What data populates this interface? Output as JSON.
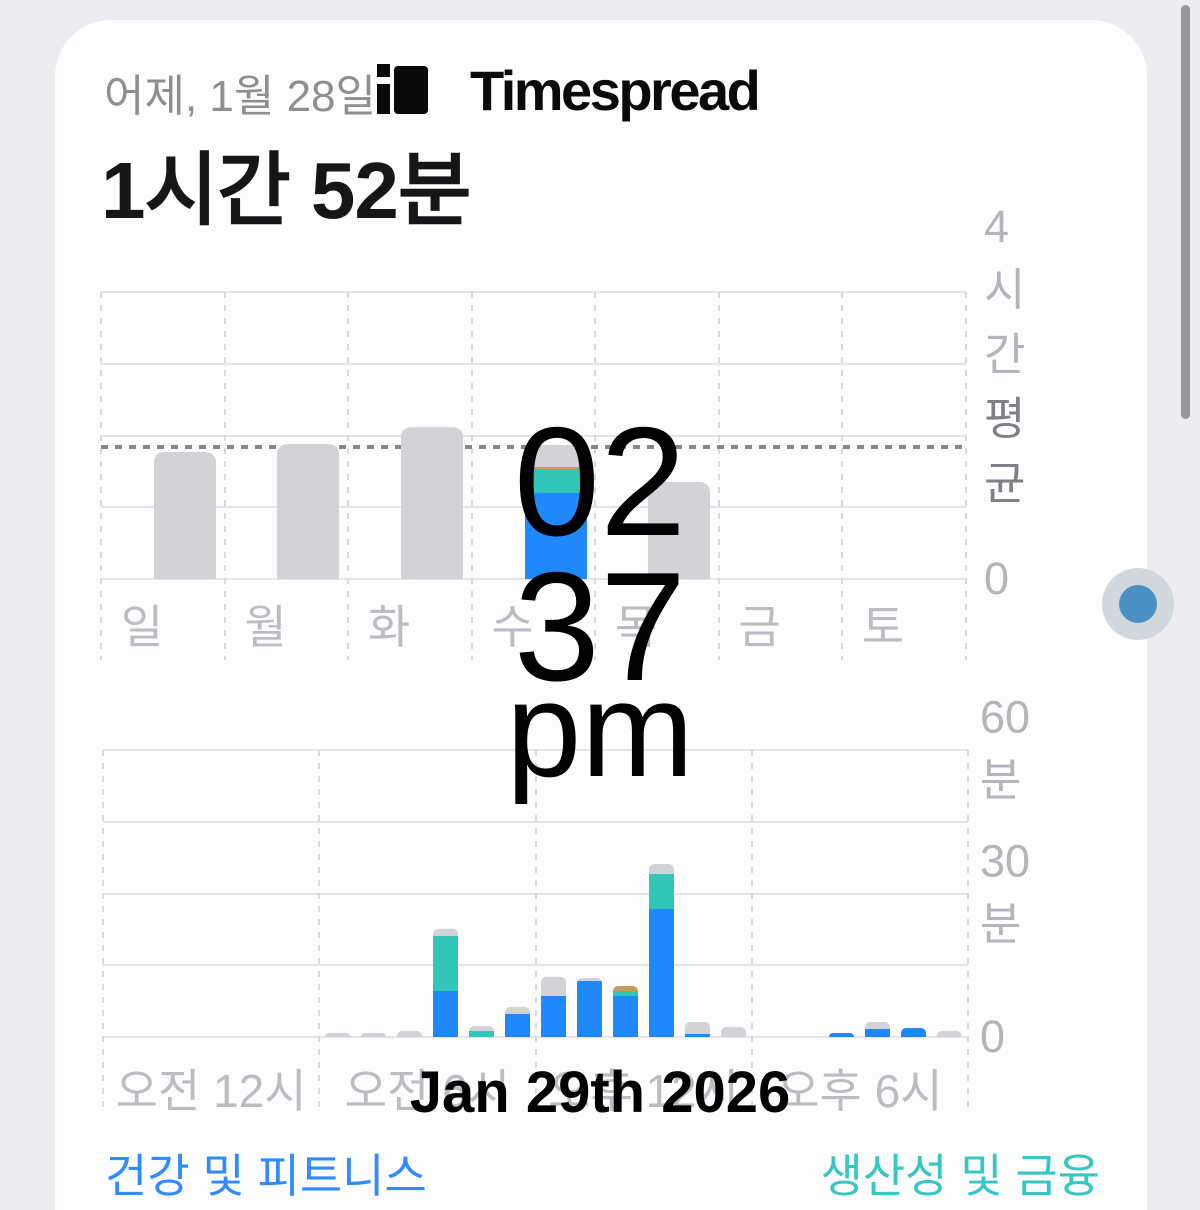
{
  "app": {
    "watermark": "Timespread"
  },
  "header": {
    "date_label": "어제, 1월 28일",
    "screen_time_total": "1시간 52분"
  },
  "time_overlay": {
    "hour": "02",
    "minute": "37",
    "meridiem": "pm",
    "date": "Jan 29th 2026"
  },
  "legend": {
    "health_fitness": "건강 및 피트니스",
    "productivity_finance": "생산성 및 금융"
  },
  "colors": {
    "bar_blue": "#1f88fa",
    "bar_teal": "#31c7b8",
    "bar_orange": "#cf9a52",
    "bar_gray": "#d2d2d7",
    "legend_blue": "#2f8bfe",
    "legend_teal": "#36c6c3",
    "dot_blue": "#4a90c3"
  },
  "chart_data": [
    {
      "type": "bar",
      "name": "weekly-screen-time",
      "categories": [
        "일",
        "월",
        "화",
        "수",
        "목",
        "금",
        "토"
      ],
      "unit": "minutes",
      "ylim": [
        0,
        240
      ],
      "yticks": [
        {
          "label": "4시간",
          "minutes": 240
        },
        {
          "label": "평균",
          "minutes": 110,
          "dark": true
        },
        {
          "label": "0",
          "minutes": 0
        }
      ],
      "average_minutes": 110,
      "grid": "dashed-vertical+solid-horizontal",
      "legend_position": "none",
      "series": [
        {
          "name": "blue",
          "values": [
            0,
            0,
            0,
            72,
            0,
            0,
            0
          ]
        },
        {
          "name": "teal",
          "values": [
            0,
            0,
            0,
            20,
            0,
            0,
            0
          ]
        },
        {
          "name": "orange",
          "values": [
            0,
            0,
            0,
            2,
            0,
            0,
            0
          ]
        },
        {
          "name": "gray",
          "values": [
            106,
            113,
            127,
            18,
            81,
            0,
            0
          ]
        }
      ],
      "totals_minutes": [
        106,
        113,
        127,
        112,
        81,
        0,
        0
      ]
    },
    {
      "type": "bar",
      "name": "hourly-usage",
      "categories": [
        "0",
        "1",
        "2",
        "3",
        "4",
        "5",
        "6",
        "7",
        "8",
        "9",
        "10",
        "11",
        "12",
        "13",
        "14",
        "15",
        "16",
        "17",
        "18",
        "19",
        "20",
        "21",
        "22",
        "23"
      ],
      "xticks": [
        "오전 12시",
        "오전 6시",
        "오후 12시",
        "오후 6시"
      ],
      "unit": "minutes",
      "ylim": [
        0,
        60
      ],
      "yticks": [
        {
          "label": "60분",
          "minutes": 60
        },
        {
          "label": "30분",
          "minutes": 30
        },
        {
          "label": "0",
          "minutes": 0
        }
      ],
      "grid": "dashed-vertical+solid-horizontal",
      "legend_position": "none",
      "series": [
        {
          "name": "blue",
          "values": [
            0,
            0,
            0,
            0,
            0,
            0,
            0,
            0,
            0,
            9.6,
            0,
            4.8,
            8.5,
            11.7,
            8.5,
            26.7,
            0.7,
            0,
            0,
            0,
            0.9,
            1.7,
            1.9,
            0
          ]
        },
        {
          "name": "teal",
          "values": [
            0,
            0,
            0,
            0,
            0,
            0,
            0,
            0,
            0,
            11.5,
            1.3,
            0,
            0,
            0,
            1.1,
            7.3,
            0,
            0,
            0,
            0,
            0,
            0,
            0,
            0
          ]
        },
        {
          "name": "orange",
          "values": [
            0,
            0,
            0,
            0,
            0,
            0,
            0,
            0,
            0,
            0,
            0,
            0,
            0,
            0,
            1.0,
            0,
            0,
            0,
            0,
            0,
            0,
            0,
            0,
            0
          ]
        },
        {
          "name": "gray",
          "values": [
            0,
            0,
            0,
            0,
            0,
            0,
            0.9,
            0.9,
            1.2,
            1.5,
            0.9,
            1.5,
            4.0,
            0.7,
            0,
            2.1,
            2.5,
            2.1,
            0,
            0,
            0,
            1.4,
            0,
            1.2
          ]
        }
      ]
    }
  ]
}
